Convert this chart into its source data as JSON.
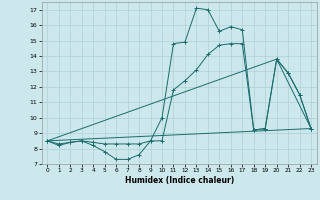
{
  "xlabel": "Humidex (Indice chaleur)",
  "xlim": [
    -0.5,
    23.5
  ],
  "ylim": [
    7,
    17.5
  ],
  "xticks": [
    0,
    1,
    2,
    3,
    4,
    5,
    6,
    7,
    8,
    9,
    10,
    11,
    12,
    13,
    14,
    15,
    16,
    17,
    18,
    19,
    20,
    21,
    22,
    23
  ],
  "yticks": [
    7,
    8,
    9,
    10,
    11,
    12,
    13,
    14,
    15,
    16,
    17
  ],
  "background_color": "#cce8ec",
  "grid_color": "#b0d0d4",
  "line_color": "#1a6b6b",
  "line1": [
    [
      0,
      8.5
    ],
    [
      1,
      8.2
    ],
    [
      2,
      8.4
    ],
    [
      3,
      8.5
    ],
    [
      4,
      8.2
    ],
    [
      5,
      7.8
    ],
    [
      6,
      7.3
    ],
    [
      7,
      7.3
    ],
    [
      8,
      7.6
    ],
    [
      9,
      8.5
    ],
    [
      10,
      10.0
    ],
    [
      11,
      14.8
    ],
    [
      12,
      14.9
    ],
    [
      13,
      17.1
    ],
    [
      14,
      17.0
    ],
    [
      15,
      15.6
    ],
    [
      16,
      15.9
    ],
    [
      17,
      15.7
    ],
    [
      18,
      9.2
    ],
    [
      19,
      9.3
    ],
    [
      20,
      13.8
    ],
    [
      21,
      12.9
    ],
    [
      22,
      11.5
    ],
    [
      23,
      9.3
    ]
  ],
  "line2": [
    [
      0,
      8.5
    ],
    [
      1,
      8.3
    ],
    [
      2,
      8.4
    ],
    [
      3,
      8.5
    ],
    [
      4,
      8.4
    ],
    [
      5,
      8.3
    ],
    [
      6,
      8.3
    ],
    [
      7,
      8.3
    ],
    [
      8,
      8.3
    ],
    [
      9,
      8.5
    ],
    [
      10,
      8.5
    ],
    [
      11,
      11.8
    ],
    [
      12,
      12.4
    ],
    [
      13,
      13.1
    ],
    [
      14,
      14.1
    ],
    [
      15,
      14.7
    ],
    [
      16,
      14.8
    ],
    [
      17,
      14.8
    ],
    [
      18,
      9.2
    ],
    [
      19,
      9.3
    ],
    [
      20,
      13.8
    ],
    [
      21,
      12.9
    ],
    [
      22,
      11.5
    ],
    [
      23,
      9.3
    ]
  ],
  "line3": [
    [
      0,
      8.5
    ],
    [
      23,
      9.3
    ]
  ],
  "line4": [
    [
      0,
      8.5
    ],
    [
      20,
      13.8
    ],
    [
      23,
      9.3
    ]
  ]
}
